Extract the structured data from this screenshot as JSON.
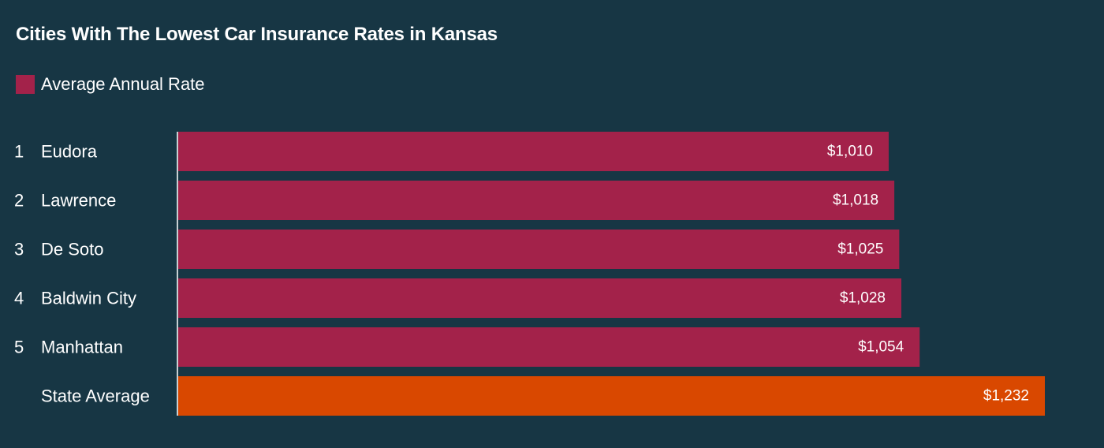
{
  "chart_data": {
    "type": "bar",
    "orientation": "horizontal",
    "title": "Cities With The Lowest Car Insurance Rates in Kansas",
    "legend": [
      {
        "label": "Average Annual Rate",
        "color": "#a3224a"
      }
    ],
    "ranks": [
      "1",
      "2",
      "3",
      "4",
      "5",
      ""
    ],
    "categories": [
      "Eudora",
      "Lawrence",
      "De Soto",
      "Baldwin City",
      "Manhattan",
      "State Average"
    ],
    "values": [
      1010,
      1018,
      1025,
      1028,
      1054,
      1232
    ],
    "value_labels": [
      "$1,010",
      "$1,018",
      "$1,025",
      "$1,028",
      "$1,054",
      "$1,232"
    ],
    "bar_colors": [
      "#a3224a",
      "#a3224a",
      "#a3224a",
      "#a3224a",
      "#a3224a",
      "#d94800"
    ],
    "xlim": [
      0,
      1232
    ],
    "grid": false
  },
  "colors": {
    "background": "#173644",
    "axis_line": "#c8d0d4",
    "text": "#ffffff"
  }
}
